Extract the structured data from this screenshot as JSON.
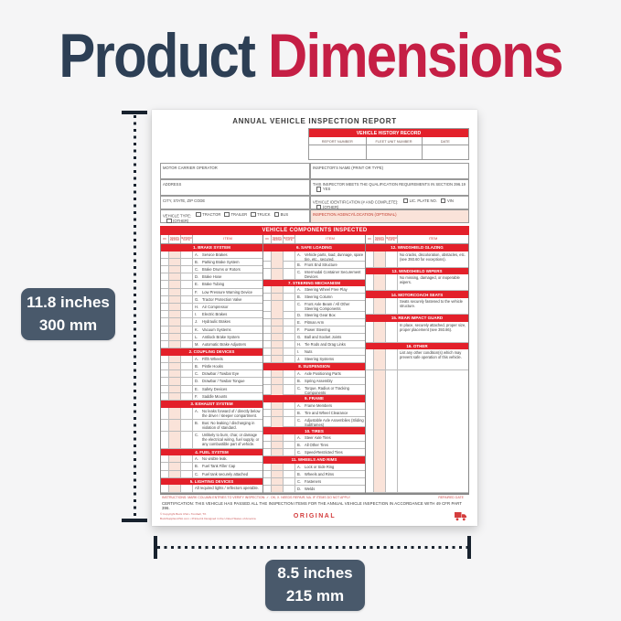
{
  "title": {
    "word1": "Product",
    "word2": "Dimensions"
  },
  "annotations": {
    "height_inches": "11.8 inches",
    "height_mm": "300 mm",
    "width_inches": "8.5 inches",
    "width_mm": "215 mm"
  },
  "colors": {
    "title_navy": "#2d3f55",
    "title_red": "#c51f45",
    "form_red": "#e3202a",
    "peach": "#fae3d9",
    "label_slate": "#49596b"
  },
  "form": {
    "title": "ANNUAL VEHICLE INSPECTION REPORT",
    "history": {
      "title": "VEHICLE HISTORY RECORD",
      "columns": [
        "REPORT NUMBER",
        "FLEET UNIT NUMBER",
        "DATE"
      ]
    },
    "fields": {
      "motor_carrier": "MOTOR CARRIER OPERATOR",
      "address": "ADDRESS",
      "city": "CITY, STATE, ZIP CODE",
      "vehicle_type_label": "VEHICLE TYPE:",
      "vehicle_type_options": [
        "TRACTOR",
        "TRAILER",
        "TRUCK",
        "BUS",
        "(OTHER)"
      ],
      "inspector_name": "INSPECTOR'S NAME (PRINT OR TYPE)",
      "qualification": "THIS INSPECTOR MEETS THE QUALIFICATION REQUIREMENTS IN SECTION 396.19",
      "qualification_options": [
        "YES"
      ],
      "vehicle_id_label": "VEHICLE IDENTIFICATION (# AND COMPLETE):",
      "vehicle_id_options": [
        "LIC. PLATE NO.",
        "VIN",
        "(OTHER)"
      ],
      "agency": "INSPECTION AGENCY/LOCATION (OPTIONAL)"
    },
    "components_title": "VEHICLE COMPONENTS INSPECTED",
    "col_headers": [
      "OK",
      "NEEDS REPAIR",
      "REPAIRED DATE",
      "ITEM"
    ],
    "columns": [
      [
        {
          "s": "1. BRAKE SYSTEM"
        },
        {
          "a": "A.",
          "t": "Service Brakes"
        },
        {
          "a": "B.",
          "t": "Parking Brake System"
        },
        {
          "a": "C.",
          "t": "Brake Drums or Rotors"
        },
        {
          "a": "D.",
          "t": "Brake Hose"
        },
        {
          "a": "E.",
          "t": "Brake Tubing"
        },
        {
          "a": "F.",
          "t": "Low Pressure Warning Device"
        },
        {
          "a": "G.",
          "t": "Tractor Protection Valve",
          "f": 2
        },
        {
          "a": "H.",
          "t": "Air Compressor",
          "f": 2
        },
        {
          "a": "I.",
          "t": "Electric Brakes"
        },
        {
          "a": "J.",
          "t": "Hydraulic Brakes"
        },
        {
          "a": "K.",
          "t": "Vacuum Systems"
        },
        {
          "a": "L.",
          "t": "Antilock Brake System"
        },
        {
          "a": "M.",
          "t": "Automatic Brake Adjusters"
        },
        {
          "s": "2. COUPLING DEVICES"
        },
        {
          "a": "A.",
          "t": "Fifth Wheels"
        },
        {
          "a": "B.",
          "t": "Pintle Hooks"
        },
        {
          "a": "C.",
          "t": "Drawbar / Towbar Eye"
        },
        {
          "a": "D.",
          "t": "Drawbar / Towbar Tongue",
          "f": 2
        },
        {
          "a": "E.",
          "t": "Safety Devices"
        },
        {
          "a": "F.",
          "t": "Saddle Mounts"
        },
        {
          "s": "3. EXHAUST SYSTEM"
        },
        {
          "a": "A.",
          "t": "No leaks forward of / directly below the driver / sleeper compartment."
        },
        {
          "a": "B.",
          "t": "Bus: No leaking / discharging in violation of standard."
        },
        {
          "a": "C.",
          "t": "Unlikely to burn, char, or damage the electrical wiring, fuel supply, or any combustible part of vehicle."
        },
        {
          "s": "4. FUEL SYSTEM"
        },
        {
          "a": "A.",
          "t": "No visible leak.",
          "f": 2
        },
        {
          "a": "B.",
          "t": "Fuel Tank Filler Cap"
        },
        {
          "a": "C.",
          "t": "Fuel tank securely attached"
        },
        {
          "s": "5. LIGHTING DEVICES"
        },
        {
          "t": "All required lights / reflectors operable.",
          "f": 2
        }
      ],
      [
        {
          "s": "6. SAFE LOADING"
        },
        {
          "a": "A.",
          "t": "Vehicle parts, load, dunnage, spare tire, etc., secured."
        },
        {
          "a": "B.",
          "t": "Front End Structure"
        },
        {
          "a": "C.",
          "t": "Intermodal Container Securement Devices"
        },
        {
          "s": "7. STEERING MECHANISM"
        },
        {
          "a": "A.",
          "t": "Steering Wheel Free Play"
        },
        {
          "a": "B.",
          "t": "Steering Column",
          "f": 2
        },
        {
          "a": "C.",
          "t": "Front Axle Beam / All Other Steering Components"
        },
        {
          "a": "D.",
          "t": "Steering Gear Box"
        },
        {
          "a": "E.",
          "t": "Pitman Arm"
        },
        {
          "a": "F.",
          "t": "Power Steering"
        },
        {
          "a": "G.",
          "t": "Ball and Socket Joints"
        },
        {
          "a": "H.",
          "t": "Tie Rods and Drag Links"
        },
        {
          "a": "I.",
          "t": "Nuts"
        },
        {
          "a": "J.",
          "t": "Steering Systems"
        },
        {
          "s": "8. SUSPENSION"
        },
        {
          "a": "A.",
          "t": "Axle Positioning Parts"
        },
        {
          "a": "B.",
          "t": "Spring Assembly"
        },
        {
          "a": "C.",
          "t": "Torque, Radius or Tracking Components"
        },
        {
          "s": "9. FRAME"
        },
        {
          "a": "A.",
          "t": "Frame Members"
        },
        {
          "a": "B.",
          "t": "Tire and Wheel Clearance"
        },
        {
          "a": "C.",
          "t": "Adjustable Axle Assemblies (Sliding Subframes)"
        },
        {
          "s": "10. TIRES"
        },
        {
          "a": "A.",
          "t": "Steer Axle Tires",
          "f": 5
        },
        {
          "a": "B.",
          "t": "All Other Tires"
        },
        {
          "a": "C.",
          "t": "Speed-Restricted Tires"
        },
        {
          "s": "11. WHEELS AND RIMS"
        },
        {
          "a": "A.",
          "t": "Lock or Side Ring"
        },
        {
          "a": "B.",
          "t": "Wheels and Rims"
        },
        {
          "a": "C.",
          "t": "Fasteners"
        },
        {
          "a": "D.",
          "t": "Welds"
        }
      ],
      [
        {
          "s": "12. WINDSHIELD GLAZING"
        },
        {
          "t": "No cracks, discoloration, obstacles, etc. (see 393.60 for exceptions)."
        },
        {
          "s": "13. WINDSHIELD WIPERS"
        },
        {
          "t": "No missing, damaged, or inoperable wipers."
        },
        {
          "s": "14. MOTORCOACH SEATS"
        },
        {
          "t": "Seats securely fastened to the vehicle structure."
        },
        {
          "s": "15. REAR IMPACT GUARD"
        },
        {
          "t": "In place, securely attached, proper size, proper placement (see 393.86).",
          "f": 2
        },
        {
          "s": "16. OTHER"
        },
        {
          "t": "List any other condition(s) which may prevent safe operation of this vehicle.",
          "f": 2
        },
        {
          "w": 15,
          "f": 14
        }
      ]
    ],
    "footer": {
      "instructions": "INSTRUCTIONS: MARK COLUMN ENTRIES TO VERIFY INSPECTION:   ✓. OK;   X. NEEDS REPAIR;   NA. IF ITEMS DO NOT APPLY.",
      "repaired_date": "REPAIRED DATE",
      "certification": "CERTIFICATION: THIS VEHICLE HAS PASSED ALL THE INSPECTION ITEMS FOR THE ANNUAL VEHICLE INSPECTION IN ACCORDANCE WITH 49 CFR PART 396.",
      "copyright_line1": "© Copyright Buck USA • Tomball, TX.",
      "copyright_line2": "BuckSuppliesUSA.com • Printed & Designed in the United States of America",
      "original": "ORIGINAL"
    }
  }
}
